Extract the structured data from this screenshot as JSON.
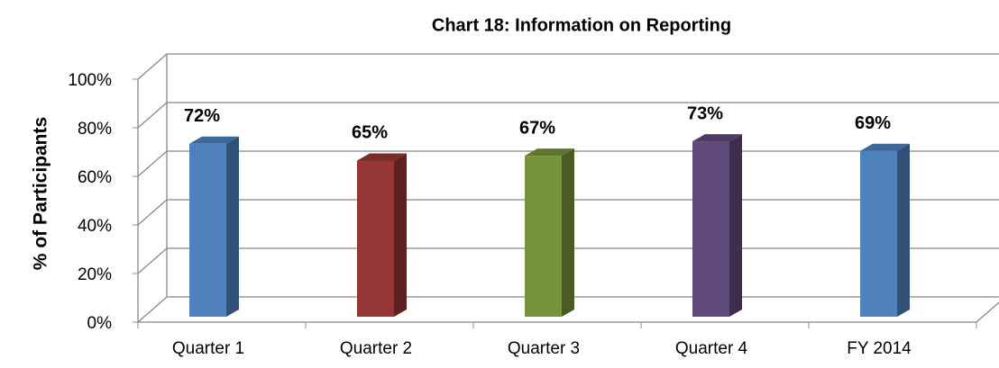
{
  "chart_data": {
    "type": "bar3d",
    "title": "Chart 18: Information on Reporting",
    "y_label": "% of Participants",
    "categories": [
      "Quarter 1",
      "Quarter 2",
      "Quarter 3",
      "Quarter 4",
      "FY 2014"
    ],
    "values": [
      72,
      65,
      67,
      73,
      69
    ],
    "value_labels": [
      "72%",
      "65%",
      "67%",
      "73%",
      "69%"
    ],
    "colors": [
      "#4f81bd",
      "#953735",
      "#77933c",
      "#604a7b",
      "#4f81bd"
    ],
    "ylim": [
      0,
      100
    ],
    "yticks": [
      {
        "value": 0,
        "label": "0%"
      },
      {
        "value": 20,
        "label": "20%"
      },
      {
        "value": 40,
        "label": "40%"
      },
      {
        "value": 60,
        "label": "60%"
      },
      {
        "value": 80,
        "label": "80%"
      },
      {
        "value": 100,
        "label": "100%"
      }
    ],
    "grid": true
  }
}
